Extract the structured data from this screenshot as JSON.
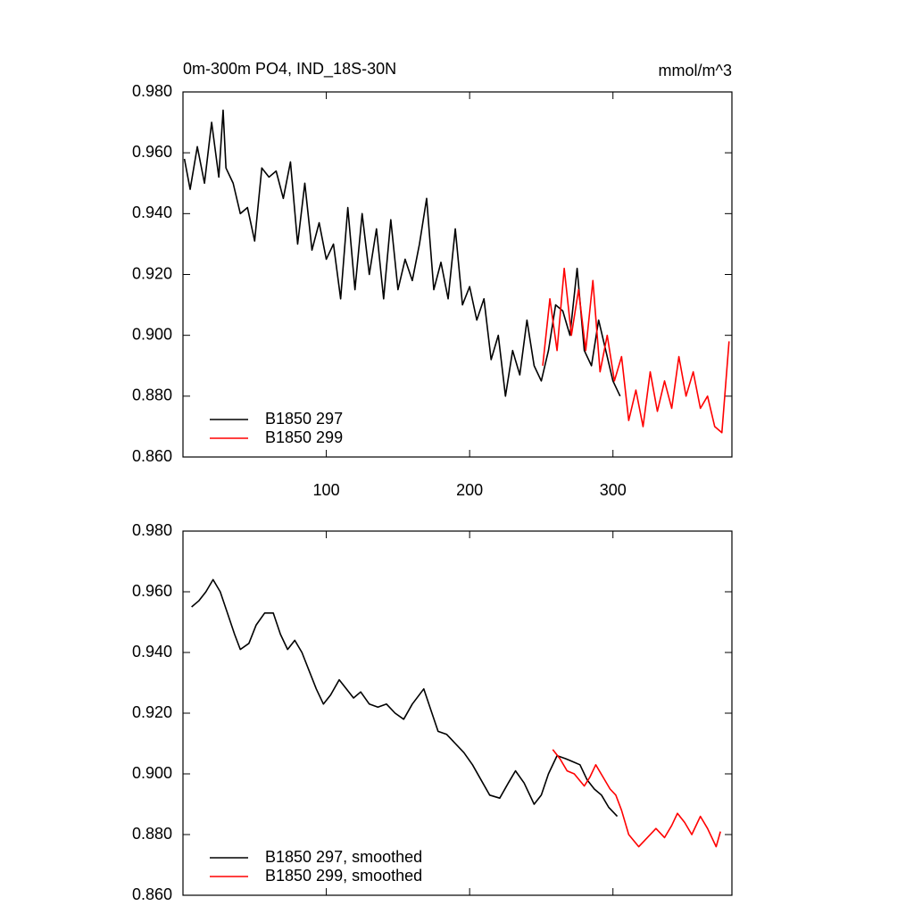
{
  "chart_data": [
    {
      "type": "line",
      "title": "0m-300m PO4, IND_18S-30N",
      "units": "mmol/m^3",
      "xlim": [
        0,
        383
      ],
      "xticks": [
        100,
        200,
        300
      ],
      "x_tick_labels": true,
      "ylim": [
        0.86,
        0.98
      ],
      "yticks": [
        {
          "value": 0.86,
          "label": "0.860"
        },
        {
          "value": 0.88,
          "label": "0.880"
        },
        {
          "value": 0.9,
          "label": "0.900"
        },
        {
          "value": 0.92,
          "label": "0.920"
        },
        {
          "value": 0.94,
          "label": "0.940"
        },
        {
          "value": 0.96,
          "label": "0.960"
        },
        {
          "value": 0.98,
          "label": "0.980"
        }
      ],
      "legend": "lower left",
      "series": [
        {
          "name": "B1850 297",
          "color": "#000000",
          "x": [
            1,
            5,
            10,
            15,
            20,
            25,
            28,
            30,
            35,
            40,
            45,
            50,
            55,
            60,
            65,
            70,
            75,
            80,
            85,
            90,
            95,
            100,
            105,
            110,
            115,
            120,
            125,
            130,
            135,
            140,
            145,
            150,
            155,
            160,
            165,
            170,
            175,
            180,
            185,
            190,
            195,
            200,
            205,
            210,
            215,
            220,
            225,
            230,
            235,
            240,
            245,
            250,
            255,
            260,
            265,
            270,
            275,
            280,
            285,
            290,
            295,
            300,
            305
          ],
          "values": [
            0.958,
            0.948,
            0.962,
            0.95,
            0.97,
            0.952,
            0.974,
            0.955,
            0.95,
            0.94,
            0.942,
            0.931,
            0.955,
            0.952,
            0.954,
            0.945,
            0.957,
            0.93,
            0.95,
            0.928,
            0.937,
            0.925,
            0.93,
            0.912,
            0.942,
            0.915,
            0.94,
            0.92,
            0.935,
            0.912,
            0.938,
            0.915,
            0.925,
            0.918,
            0.93,
            0.945,
            0.915,
            0.924,
            0.912,
            0.935,
            0.91,
            0.916,
            0.905,
            0.912,
            0.892,
            0.9,
            0.88,
            0.895,
            0.887,
            0.905,
            0.89,
            0.885,
            0.895,
            0.91,
            0.908,
            0.9,
            0.922,
            0.895,
            0.89,
            0.905,
            0.895,
            0.885,
            0.88
          ]
        },
        {
          "name": "B1850 299",
          "color": "#ff0000",
          "x": [
            251,
            256,
            261,
            266,
            271,
            276,
            281,
            286,
            291,
            296,
            301,
            306,
            311,
            316,
            321,
            326,
            331,
            336,
            341,
            346,
            351,
            356,
            361,
            366,
            371,
            376,
            381
          ],
          "values": [
            0.89,
            0.912,
            0.895,
            0.922,
            0.9,
            0.915,
            0.895,
            0.918,
            0.888,
            0.9,
            0.885,
            0.893,
            0.872,
            0.882,
            0.87,
            0.888,
            0.875,
            0.885,
            0.876,
            0.893,
            0.88,
            0.888,
            0.876,
            0.88,
            0.87,
            0.868,
            0.898
          ]
        }
      ]
    },
    {
      "type": "line",
      "xlim": [
        0,
        383
      ],
      "xticks": [
        100,
        200,
        300
      ],
      "x_tick_labels": false,
      "ylim": [
        0.86,
        0.98
      ],
      "yticks": [
        {
          "value": 0.86,
          "label": "0.860"
        },
        {
          "value": 0.88,
          "label": "0.880"
        },
        {
          "value": 0.9,
          "label": "0.900"
        },
        {
          "value": 0.92,
          "label": "0.920"
        },
        {
          "value": 0.94,
          "label": "0.940"
        },
        {
          "value": 0.96,
          "label": "0.960"
        },
        {
          "value": 0.98,
          "label": "0.980"
        }
      ],
      "legend": "lower left",
      "series": [
        {
          "name": "B1850 297, smoothed",
          "color": "#000000",
          "x": [
            6,
            11,
            16,
            21,
            26,
            31,
            36,
            40,
            46,
            51,
            57,
            63,
            68,
            73,
            78,
            83,
            88,
            93,
            98,
            103,
            109,
            114,
            119,
            124,
            130,
            136,
            142,
            148,
            154,
            160,
            168,
            173,
            178,
            184,
            190,
            196,
            202,
            208,
            214,
            221,
            227,
            232,
            238,
            245,
            250,
            255,
            261,
            267,
            272,
            277,
            282,
            287,
            292,
            297,
            303
          ],
          "values": [
            0.955,
            0.957,
            0.96,
            0.964,
            0.96,
            0.953,
            0.946,
            0.941,
            0.943,
            0.949,
            0.953,
            0.953,
            0.946,
            0.941,
            0.944,
            0.94,
            0.934,
            0.928,
            0.923,
            0.926,
            0.931,
            0.928,
            0.925,
            0.927,
            0.923,
            0.922,
            0.923,
            0.92,
            0.918,
            0.923,
            0.928,
            0.921,
            0.914,
            0.913,
            0.91,
            0.907,
            0.903,
            0.898,
            0.893,
            0.892,
            0.897,
            0.901,
            0.897,
            0.89,
            0.893,
            0.9,
            0.906,
            0.905,
            0.904,
            0.903,
            0.898,
            0.895,
            0.893,
            0.889,
            0.886
          ]
        },
        {
          "name": "B1850 299, smoothed",
          "color": "#ff0000",
          "x": [
            258,
            263,
            268,
            273,
            280,
            284,
            288,
            293,
            298,
            302,
            306,
            311,
            318,
            324,
            330,
            336,
            341,
            345,
            350,
            355,
            361,
            366,
            372,
            375
          ],
          "values": [
            0.908,
            0.905,
            0.901,
            0.9,
            0.896,
            0.899,
            0.903,
            0.899,
            0.895,
            0.893,
            0.888,
            0.88,
            0.876,
            0.879,
            0.882,
            0.879,
            0.883,
            0.887,
            0.884,
            0.88,
            0.886,
            0.882,
            0.876,
            0.881
          ]
        }
      ]
    }
  ]
}
